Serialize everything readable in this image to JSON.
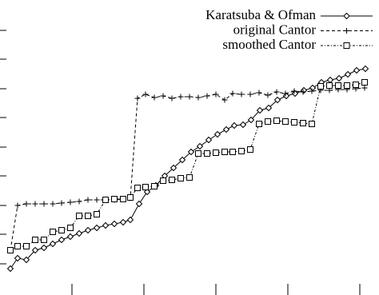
{
  "chart_data": {
    "type": "line",
    "xlim": [
      0,
      462
    ],
    "xticks": [
      82,
      172,
      262,
      352,
      442
    ],
    "ylim": [
      0,
      355
    ],
    "yticks": [
      25,
      62,
      98,
      135,
      171,
      208,
      244,
      281,
      317
    ],
    "legend": "top-right",
    "series": [
      {
        "name": "Karatsuba & Ofman",
        "color": "#000000",
        "style": "solid",
        "marker": "diamond",
        "x": [
          5,
          14,
          25,
          36,
          47,
          58,
          69,
          80,
          91,
          102,
          113,
          124,
          135,
          146,
          155,
          166,
          176,
          187,
          198,
          209,
          220,
          231,
          242,
          253,
          264,
          275,
          285,
          296,
          306,
          317,
          328,
          339,
          350,
          361,
          372,
          383,
          394,
          405,
          416,
          427,
          438,
          449
        ],
        "values": [
          19,
          32,
          30,
          42,
          45,
          50,
          55,
          59,
          63,
          67,
          70,
          73,
          75,
          77,
          80,
          100,
          115,
          123,
          135,
          145,
          155,
          165,
          172,
          180,
          187,
          193,
          198,
          199,
          205,
          217,
          220,
          230,
          235,
          238,
          242,
          245,
          252,
          255,
          257,
          262,
          267,
          269
        ]
      },
      {
        "name": "original Cantor",
        "color": "#000000",
        "style": "dashed",
        "marker": "plus",
        "x": [
          5,
          14,
          25,
          36,
          47,
          58,
          69,
          80,
          91,
          102,
          113,
          124,
          135,
          146,
          155,
          164,
          174,
          185,
          196,
          207,
          218,
          229,
          240,
          251,
          262,
          273,
          283,
          294,
          305,
          316,
          327,
          338,
          349,
          360,
          371,
          382,
          393,
          404,
          415,
          426,
          437,
          448
        ],
        "values": [
          42,
          98,
          100,
          100,
          100,
          100,
          101,
          102,
          103,
          105,
          105,
          105,
          105,
          106,
          107,
          232,
          237,
          233,
          235,
          232,
          234,
          234,
          233,
          235,
          237,
          230,
          238,
          237,
          237,
          239,
          236,
          240,
          238,
          241,
          240,
          241,
          242,
          242,
          243,
          243,
          244,
          245
        ]
      },
      {
        "name": "smoothed Cantor",
        "color": "#000000",
        "style": "dotdash",
        "marker": "square",
        "x": [
          5,
          14,
          25,
          36,
          47,
          58,
          69,
          80,
          91,
          102,
          113,
          124,
          135,
          146,
          155,
          164,
          174,
          185,
          196,
          207,
          218,
          229,
          240,
          251,
          262,
          273,
          283,
          294,
          305,
          316,
          327,
          338,
          349,
          360,
          371,
          382,
          393,
          404,
          415,
          426,
          437,
          448
        ],
        "values": [
          42,
          47,
          47,
          55,
          55,
          65,
          67,
          70,
          85,
          85,
          87,
          105,
          106,
          106,
          108,
          120,
          121,
          122,
          129,
          130,
          132,
          133,
          163,
          163,
          164,
          165,
          165,
          166,
          168,
          200,
          203,
          204,
          203,
          202,
          201,
          200,
          247,
          248,
          248,
          248,
          249,
          252
        ]
      }
    ]
  }
}
